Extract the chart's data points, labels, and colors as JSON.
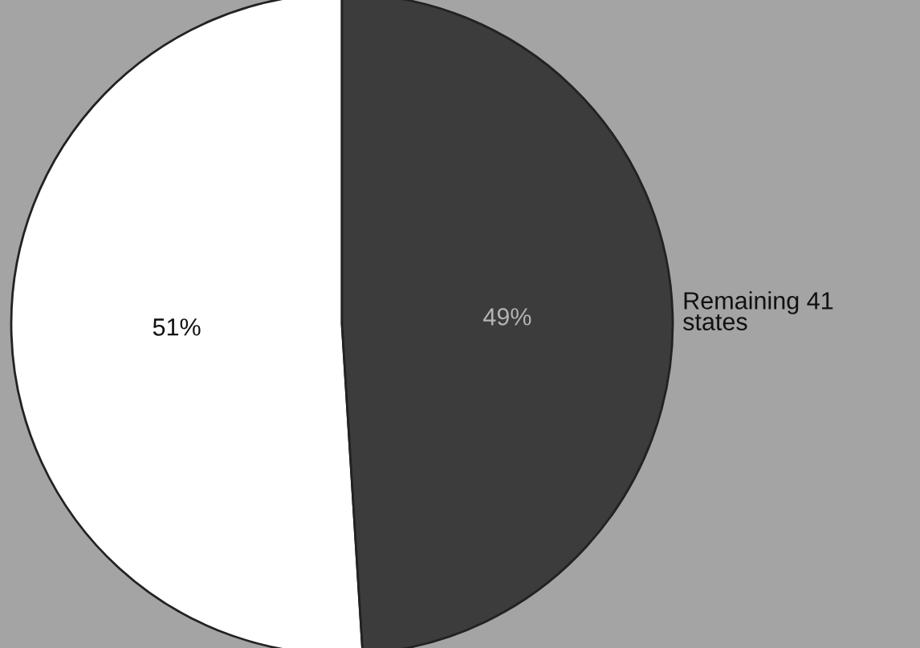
{
  "chart_data": {
    "type": "pie",
    "categories": [
      null,
      "Remaining 41\nstates"
    ],
    "values": [
      51,
      49
    ],
    "colors": [
      "#ffffff",
      "#3c3c3c"
    ],
    "value_labels": [
      "51%",
      "49%"
    ],
    "legend": false
  }
}
